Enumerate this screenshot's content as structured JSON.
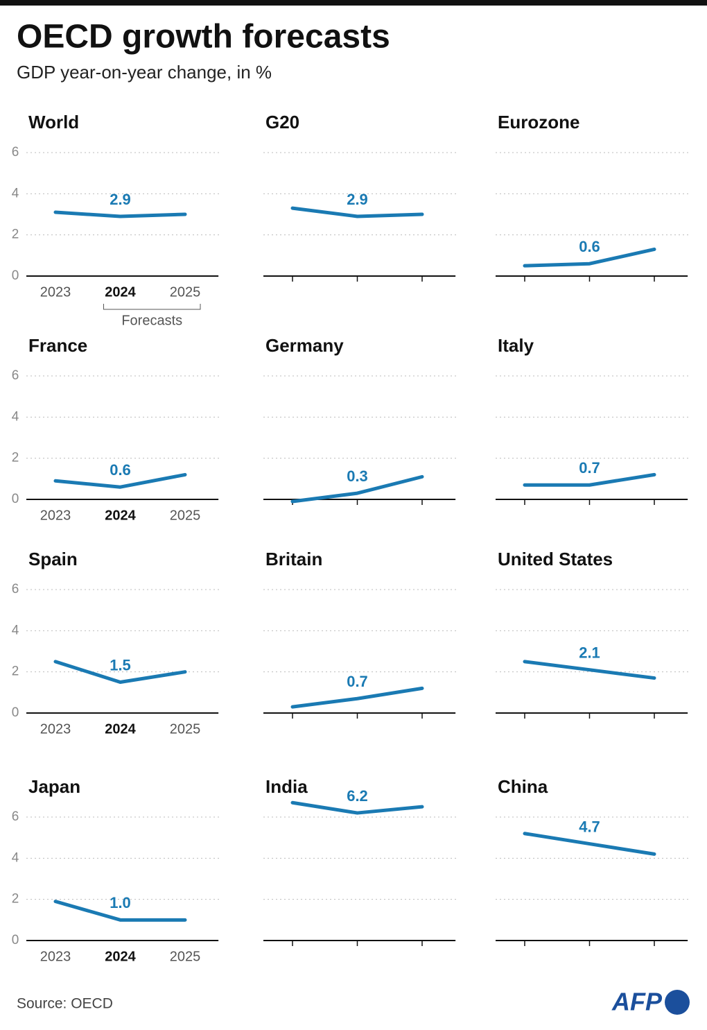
{
  "title": "OECD growth forecasts",
  "subtitle": "GDP year-on-year change, in %",
  "source": "Source: OECD",
  "logo": "AFP",
  "chart_data": [
    {
      "type": "line",
      "title": "World",
      "categories": [
        "2023",
        "2024",
        "2025"
      ],
      "values": [
        3.1,
        2.9,
        3.0
      ],
      "value_labels": [
        null,
        "2.9",
        null
      ],
      "color": "#1a7ab3",
      "ylim": [
        0,
        6
      ],
      "yticks": [
        0,
        2,
        4,
        6
      ],
      "grid": true,
      "annotation": "Forecasts"
    },
    {
      "type": "line",
      "title": "G20",
      "categories": [
        null,
        null,
        null
      ],
      "values": [
        3.3,
        2.9,
        3.0
      ],
      "value_labels": [
        null,
        "2.9",
        null
      ],
      "color": "#1a7ab3",
      "ylim": [
        0,
        6
      ],
      "gridlines": [
        0,
        2,
        4,
        6
      ]
    },
    {
      "type": "line",
      "title": "Eurozone",
      "categories": [
        null,
        null,
        null
      ],
      "values": [
        0.5,
        0.6,
        1.3
      ],
      "value_labels": [
        null,
        "0.6",
        null
      ],
      "color": "#1a7ab3",
      "ylim": [
        0,
        6
      ],
      "gridlines": [
        0,
        2,
        4,
        6
      ]
    },
    {
      "type": "line",
      "title": "France",
      "categories": [
        "2023",
        "2024",
        "2025"
      ],
      "values": [
        0.9,
        0.6,
        1.2
      ],
      "value_labels": [
        null,
        "0.6",
        null
      ],
      "color": "#1a7ab3",
      "ylim": [
        0,
        6
      ],
      "yticks": [
        0,
        2,
        4,
        6
      ],
      "grid": true
    },
    {
      "type": "line",
      "title": "Germany",
      "categories": [
        null,
        null,
        null
      ],
      "values": [
        -0.1,
        0.3,
        1.1
      ],
      "value_labels": [
        null,
        "0.3",
        null
      ],
      "color": "#1a7ab3",
      "ylim": [
        0,
        6
      ],
      "gridlines": [
        0,
        2,
        4,
        6
      ]
    },
    {
      "type": "line",
      "title": "Italy",
      "categories": [
        null,
        null,
        null
      ],
      "values": [
        0.7,
        0.7,
        1.2
      ],
      "value_labels": [
        null,
        "0.7",
        null
      ],
      "color": "#1a7ab3",
      "ylim": [
        0,
        6
      ],
      "gridlines": [
        0,
        2,
        4,
        6
      ]
    },
    {
      "type": "line",
      "title": "Spain",
      "categories": [
        "2023",
        "2024",
        "2025"
      ],
      "values": [
        2.5,
        1.5,
        2.0
      ],
      "value_labels": [
        null,
        "1.5",
        null
      ],
      "color": "#1a7ab3",
      "ylim": [
        0,
        6
      ],
      "yticks": [
        0,
        2,
        4,
        6
      ],
      "grid": true
    },
    {
      "type": "line",
      "title": "Britain",
      "categories": [
        null,
        null,
        null
      ],
      "values": [
        0.3,
        0.7,
        1.2
      ],
      "value_labels": [
        null,
        "0.7",
        null
      ],
      "color": "#1a7ab3",
      "ylim": [
        0,
        6
      ],
      "gridlines": [
        0,
        2,
        4,
        6
      ]
    },
    {
      "type": "line",
      "title": "United States",
      "categories": [
        null,
        null,
        null
      ],
      "values": [
        2.5,
        2.1,
        1.7
      ],
      "value_labels": [
        null,
        "2.1",
        null
      ],
      "color": "#1a7ab3",
      "ylim": [
        0,
        6
      ],
      "gridlines": [
        0,
        2,
        4,
        6
      ]
    },
    {
      "type": "line",
      "title": "Japan",
      "categories": [
        "2023",
        "2024",
        "2025"
      ],
      "values": [
        1.9,
        1.0,
        1.0
      ],
      "value_labels": [
        null,
        "1.0",
        null
      ],
      "color": "#1a7ab3",
      "ylim": [
        0,
        6
      ],
      "yticks": [
        0,
        2,
        4,
        6
      ],
      "grid": true
    },
    {
      "type": "line",
      "title": "India",
      "categories": [
        null,
        null,
        null
      ],
      "values": [
        6.7,
        6.2,
        6.5
      ],
      "value_labels": [
        null,
        "6.2",
        null
      ],
      "color": "#1a7ab3",
      "ylim": [
        0,
        6
      ],
      "gridlines": [
        0,
        2,
        4,
        6
      ]
    },
    {
      "type": "line",
      "title": "China",
      "categories": [
        null,
        null,
        null
      ],
      "values": [
        5.2,
        4.7,
        4.2
      ],
      "value_labels": [
        null,
        "4.7",
        null
      ],
      "color": "#1a7ab3",
      "ylim": [
        0,
        6
      ],
      "gridlines": [
        0,
        2,
        4,
        6
      ]
    }
  ]
}
